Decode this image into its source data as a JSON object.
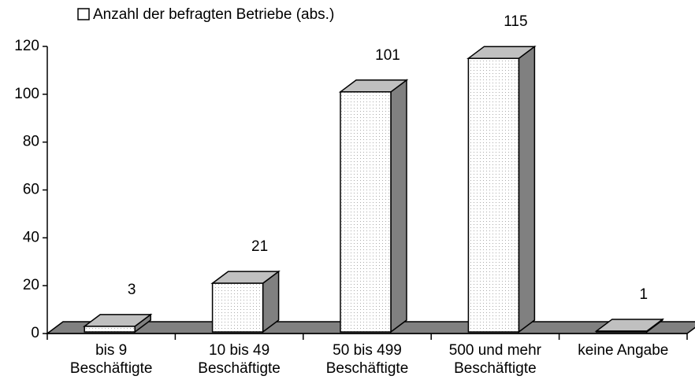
{
  "chart_data": {
    "type": "bar3d",
    "legend_label": "Anzahl der befragten Betriebe (abs.)",
    "legend": "top",
    "categories": [
      "bis 9\nBeschäftigte",
      "10 bis 49\nBeschäftigte",
      "50 bis 499\nBeschäftigte",
      "500 und mehr\nBeschäftigte",
      "keine Angabe"
    ],
    "values": [
      3,
      21,
      101,
      115,
      1
    ],
    "color": "#ffffff",
    "ylim": [
      0,
      120
    ],
    "yticks": [
      0,
      20,
      40,
      60,
      80,
      100,
      120
    ]
  }
}
